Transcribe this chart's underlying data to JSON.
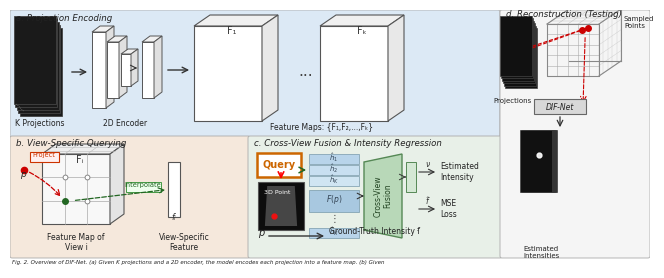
{
  "bg_top": "#dce9f5",
  "bg_bottom_left": "#f5e8dc",
  "bg_bottom_mid": "#e8f0e8",
  "section_a_title": "a. Projection Encoding",
  "section_b_title": "b. View-Specific Querying",
  "section_c_title": "c. Cross-View Fusion & Intensity Regression",
  "section_d_title": "d. Reconstruction (Testing)",
  "label_k_proj": "K Projections",
  "label_2d_enc": "2D Encoder",
  "label_feat_maps": "Feature Maps: {F₁,F₂,...,Fₖ}",
  "label_feat_map_view": "Feature Map of\nView i",
  "label_view_specific": "View-Specific\nFeature",
  "label_query": "Query",
  "label_3d_point": "3D Point",
  "label_cross_view": "Cross-View\nFusion",
  "label_est_int": "Estimated\nIntensity",
  "label_mse": "MSE\nLoss",
  "label_gt": "Ground-Truth Intensity ẝ",
  "label_projections": "Projections",
  "label_sampled": "Sampled\nPoints",
  "label_dif_net": "DIF-Net",
  "label_est_int2": "Estimated\nIntensities",
  "label_f1": "F₁",
  "label_fk": "Fₖ",
  "label_fi": "Fᵢ",
  "label_fi2": "fᵢ",
  "label_project": "Project",
  "label_interpolate": "Interpolate",
  "label_v": "ν",
  "label_f_hat": "f̂",
  "caption": "Fig. 2. Overview of DIF-Net. (a) Given K projections and a 2D encoder, the model encodes each projection into a feature map. (b) Given"
}
